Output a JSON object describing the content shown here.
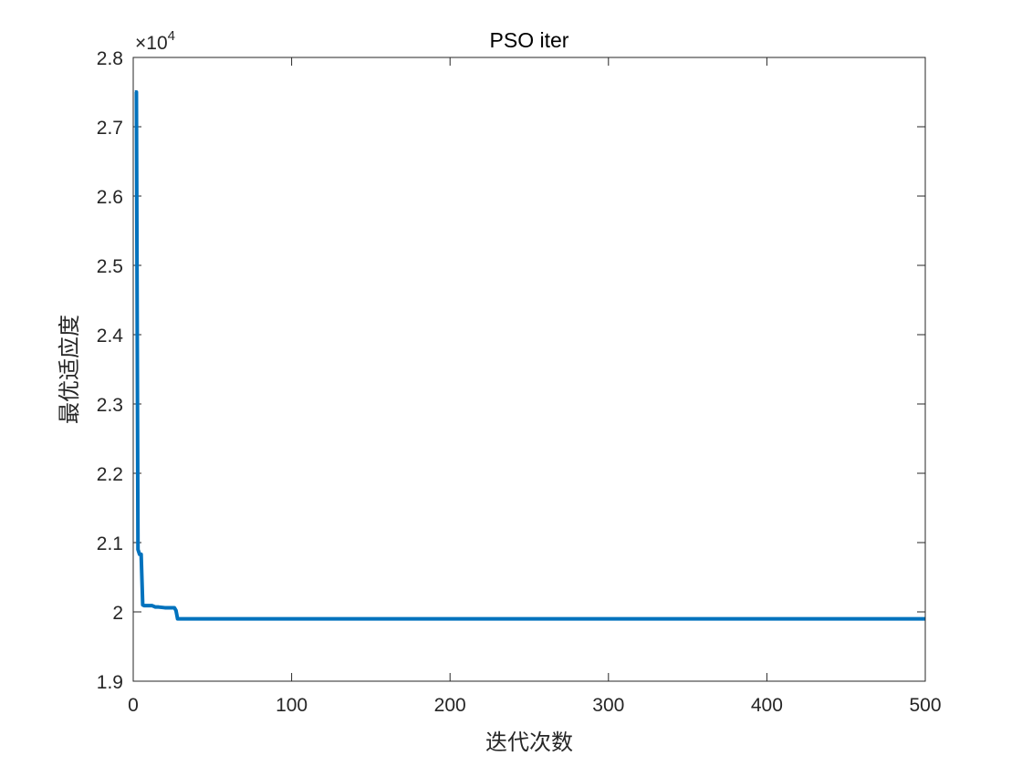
{
  "chart_data": {
    "type": "line",
    "title": "PSO iter",
    "xlabel": "迭代次数",
    "ylabel": "最优适应度",
    "y_multiplier_label": "×10",
    "y_multiplier_exponent": "4",
    "xlim": [
      0,
      500
    ],
    "ylim": [
      1.9,
      2.8
    ],
    "x_ticks": [
      0,
      100,
      200,
      300,
      400,
      500
    ],
    "x_tick_labels": [
      "0",
      "100",
      "200",
      "300",
      "400",
      "500"
    ],
    "y_ticks": [
      1.9,
      2.0,
      2.1,
      2.2,
      2.3,
      2.4,
      2.5,
      2.6,
      2.7,
      2.8
    ],
    "y_tick_labels": [
      "1.9",
      "2",
      "2.1",
      "2.2",
      "2.3",
      "2.4",
      "2.5",
      "2.6",
      "2.7",
      "2.8"
    ],
    "grid": false,
    "box": true,
    "series": [
      {
        "color": "#0072BD",
        "x": [
          1,
          2,
          3,
          4,
          5,
          6,
          7,
          8,
          10,
          12,
          14,
          16,
          20,
          26,
          27,
          28,
          29,
          30,
          40,
          100,
          200,
          300,
          400,
          500
        ],
        "y": [
          2.75,
          2.75,
          2.09,
          2.083,
          2.083,
          2.01,
          2.009,
          2.009,
          2.009,
          2.009,
          2.007,
          2.007,
          2.006,
          2.006,
          2.002,
          1.99,
          1.99,
          1.99,
          1.99,
          1.99,
          1.99,
          1.99,
          1.99,
          1.99
        ]
      }
    ]
  }
}
